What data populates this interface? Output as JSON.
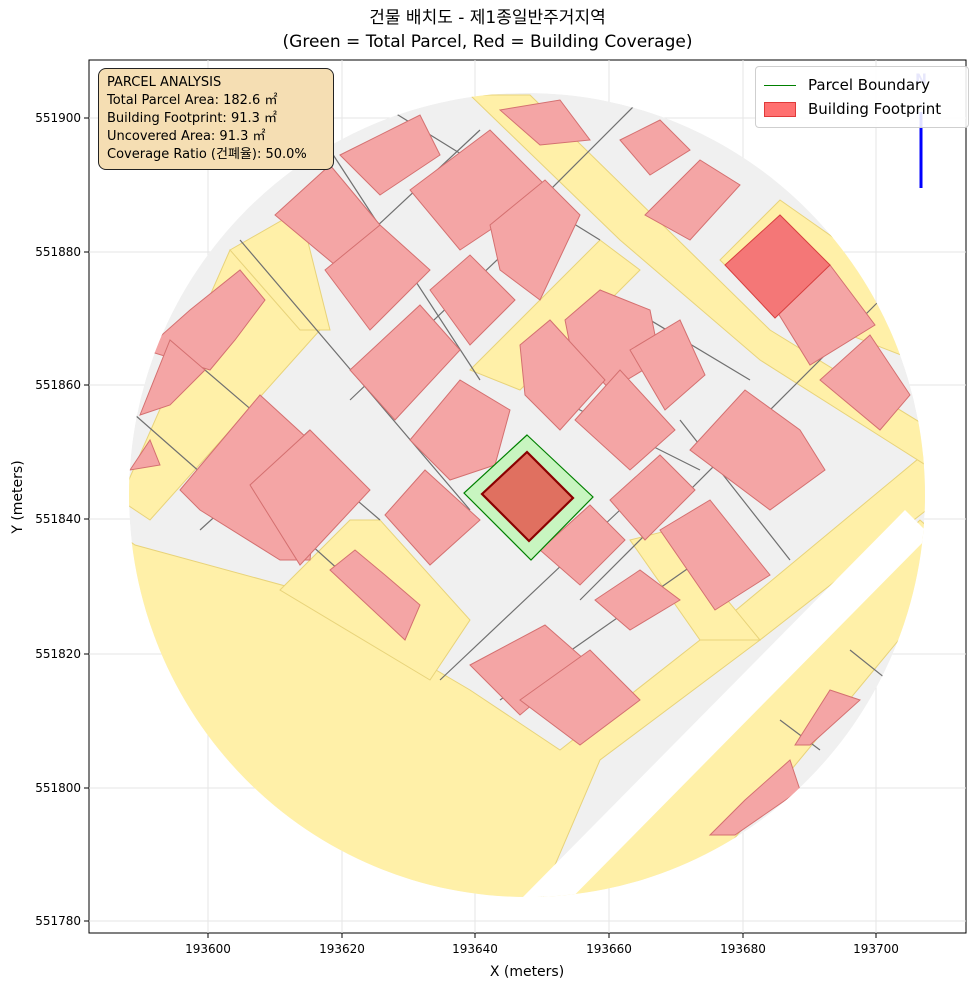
{
  "title": {
    "line1": "건물 배치도 - 제1종일반주거지역",
    "line2": "(Green = Total Parcel, Red = Building Coverage)"
  },
  "axes": {
    "xlabel": "X (meters)",
    "ylabel": "Y (meters)",
    "xticks": [
      "193600",
      "193620",
      "193640",
      "193660",
      "193680",
      "193700"
    ],
    "yticks": [
      "551780",
      "551800",
      "551820",
      "551840",
      "551860",
      "551880",
      "551900"
    ]
  },
  "info": {
    "heading": "PARCEL ANALYSIS",
    "total": "Total Parcel Area: 182.6 ㎡",
    "footprint": "Building Footprint: 91.3 ㎡",
    "uncovered": "Uncovered Area: 91.3 ㎡",
    "ratio": "Coverage Ratio (건폐율): 50.0%"
  },
  "legend": {
    "boundary": "Parcel Boundary",
    "footprint": "Building Footprint"
  },
  "north_arrow": "N",
  "colors": {
    "road": "#fff0a8",
    "parcel_gray": "#f0f0f0",
    "building": "#f4a5a5",
    "target_parcel": "#c8f5c0",
    "target_building": "#e07060",
    "boundary_green": "#008000"
  }
}
